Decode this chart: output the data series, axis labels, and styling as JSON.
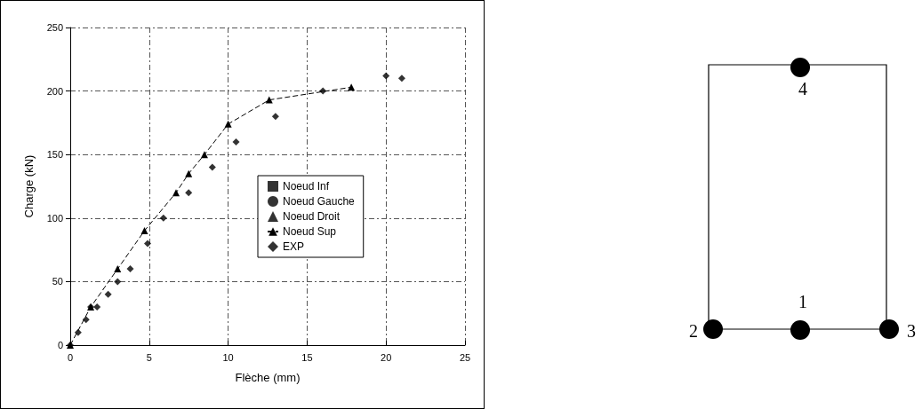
{
  "chart_data": {
    "type": "line",
    "xlabel": "Flèche (mm)",
    "ylabel": "Charge (kN)",
    "xlim": [
      0,
      25
    ],
    "xticks": [
      0,
      5,
      10,
      15,
      20,
      25
    ],
    "ylim": [
      0,
      250
    ],
    "yticks": [
      0,
      50,
      100,
      150,
      200,
      250
    ],
    "grid": true,
    "legend": "right",
    "series": [
      {
        "name": "Noeud Inf",
        "type": "scatter",
        "marker": "square",
        "color": "#000000"
      },
      {
        "name": "Noeud Gauche",
        "type": "scatter",
        "marker": "circle",
        "color": "#000000"
      },
      {
        "name": "Noeud Droit",
        "type": "scatter",
        "marker": "triangle",
        "color": "#000000"
      },
      {
        "name": "Noeud Sup",
        "marker": "triangle",
        "line_style": "dashed",
        "color": "#000000",
        "x": [
          0,
          1.3,
          3,
          4.7,
          6.7,
          7.5,
          8.5,
          10,
          12.6,
          17.8
        ],
        "values": [
          0,
          30,
          60,
          90,
          120,
          135,
          150,
          174,
          193,
          203
        ]
      },
      {
        "name": "EXP",
        "type": "scatter",
        "marker": "diamond",
        "color": "#000000",
        "x": [
          0,
          0.5,
          1,
          1.3,
          1.7,
          2.4,
          3,
          3.8,
          4.9,
          5.9,
          7.5,
          9,
          10.5,
          13,
          16,
          20,
          21
        ],
        "values": [
          0,
          10,
          20,
          30,
          30,
          40,
          50,
          60,
          80,
          100,
          120,
          140,
          160,
          180,
          200,
          212,
          210
        ]
      }
    ],
    "annotations": [
      "1",
      "2",
      "3",
      "4"
    ]
  }
}
